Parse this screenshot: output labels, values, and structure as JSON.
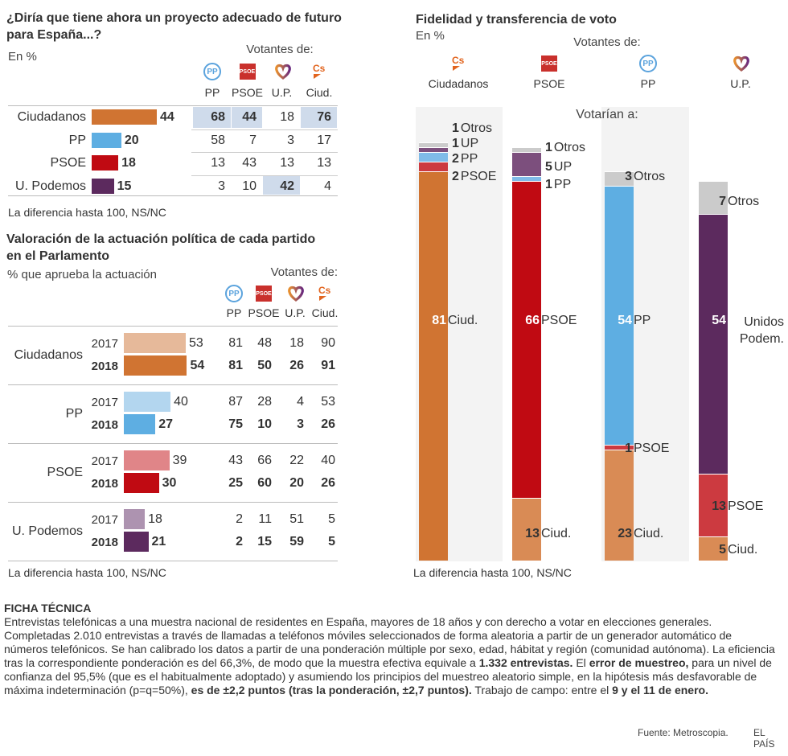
{
  "chart_data": [
    {
      "type": "table",
      "title": "¿Diría que tiene ahora un proyecto adecuado de futuro para España...?",
      "subtitle": "En %",
      "group_label": "Votantes de:",
      "columns": [
        "PP",
        "PSOE",
        "U.P.",
        "Ciud."
      ],
      "rows": [
        {
          "party": "Ciudadanos",
          "total": 44,
          "color": "#d07432",
          "values": [
            68,
            44,
            18,
            76
          ],
          "highlight": [
            true,
            true,
            false,
            true
          ]
        },
        {
          "party": "PP",
          "total": 20,
          "color": "#5eaee2",
          "values": [
            58,
            7,
            3,
            17
          ],
          "highlight": [
            false,
            false,
            false,
            false
          ]
        },
        {
          "party": "PSOE",
          "total": 18,
          "color": "#c00a12",
          "values": [
            13,
            43,
            13,
            13
          ],
          "highlight": [
            false,
            false,
            false,
            false
          ]
        },
        {
          "party": "U. Podemos",
          "total": 15,
          "color": "#5c2a5e",
          "values": [
            3,
            10,
            42,
            4
          ],
          "highlight": [
            false,
            false,
            true,
            false
          ]
        }
      ],
      "note": "La diferencia hasta 100, NS/NC"
    },
    {
      "type": "bar",
      "title": "Valoración de la actuación política de cada partido en el Parlamento",
      "subtitle": "% que aprueba la actuación",
      "group_label": "Votantes de:",
      "columns": [
        "PP",
        "PSOE",
        "U.P.",
        "Ciud."
      ],
      "years": [
        "2017",
        "2018"
      ],
      "rows": [
        {
          "party": "Ciudadanos",
          "color2017": "#e6b99a",
          "color2018": "#d07432",
          "y2017": {
            "total": 53,
            "values": [
              81,
              48,
              18,
              90
            ]
          },
          "y2018": {
            "total": 54,
            "values": [
              81,
              50,
              26,
              91
            ]
          }
        },
        {
          "party": "PP",
          "color2017": "#b3d6ef",
          "color2018": "#5eaee2",
          "y2017": {
            "total": 40,
            "values": [
              87,
              28,
              4,
              53
            ]
          },
          "y2018": {
            "total": 27,
            "values": [
              75,
              10,
              3,
              26
            ]
          }
        },
        {
          "party": "PSOE",
          "color2017": "#e08588",
          "color2018": "#c00a12",
          "y2017": {
            "total": 39,
            "values": [
              43,
              66,
              22,
              40
            ]
          },
          "y2018": {
            "total": 30,
            "values": [
              25,
              60,
              20,
              26
            ]
          }
        },
        {
          "party": "U. Podemos",
          "color2017": "#ad93b0",
          "color2018": "#5c2a5e",
          "y2017": {
            "total": 18,
            "values": [
              2,
              11,
              51,
              5
            ]
          },
          "y2018": {
            "total": 21,
            "values": [
              2,
              15,
              59,
              5
            ]
          }
        }
      ],
      "note": "La diferencia hasta 100, NS/NC"
    },
    {
      "type": "bar",
      "stacked": true,
      "title": "Fidelidad y transferencia de voto",
      "subtitle": "En %",
      "group_label": "Votantes de:",
      "inner_label": "Votarían a:",
      "note": "La diferencia hasta 100, NS/NC",
      "series": [
        {
          "name": "Ciudadanos",
          "segments": [
            {
              "value": 81,
              "label": "Ciud.",
              "color": "#d07432",
              "main": true
            },
            {
              "value": 2,
              "label": "PSOE",
              "color": "#cc3a40"
            },
            {
              "value": 2,
              "label": "PP",
              "color": "#7fbbe8"
            },
            {
              "value": 1,
              "label": "UP",
              "color": "#7c4f7d"
            },
            {
              "value": 1,
              "label": "Otros",
              "color": "#cbcbcb"
            }
          ]
        },
        {
          "name": "PSOE",
          "segments": [
            {
              "value": 13,
              "label": "Ciud.",
              "color": "#d98b55"
            },
            {
              "value": 66,
              "label": "PSOE",
              "color": "#c00a12",
              "main": true
            },
            {
              "value": 1,
              "label": "PP",
              "color": "#7fbbe8"
            },
            {
              "value": 5,
              "label": "UP",
              "color": "#7c4f7d"
            },
            {
              "value": 1,
              "label": "Otros",
              "color": "#cbcbcb"
            }
          ]
        },
        {
          "name": "PP",
          "segments": [
            {
              "value": 23,
              "label": "Ciud.",
              "color": "#d98b55"
            },
            {
              "value": 1,
              "label": "PSOE",
              "color": "#cc3a40"
            },
            {
              "value": 54,
              "label": "PP",
              "color": "#5eaee2",
              "main": true
            },
            {
              "value": 3,
              "label": "Otros",
              "color": "#cbcbcb"
            }
          ]
        },
        {
          "name": "U.P.",
          "segments": [
            {
              "value": 5,
              "label": "Ciud.",
              "color": "#d98b55"
            },
            {
              "value": 13,
              "label": "PSOE",
              "color": "#cc3a40"
            },
            {
              "value": 54,
              "label": "Unidos Podem.",
              "color": "#5c2a5e",
              "main": true
            },
            {
              "value": 7,
              "label": "Otros",
              "color": "#cbcbcb"
            }
          ]
        }
      ]
    }
  ],
  "icons": {
    "pp": "PP",
    "psoe": "PSOE",
    "cs": "Cs"
  },
  "ficha": {
    "title": "FICHA TÉCNICA",
    "p1": "Entrevistas telefónicas a una muestra nacional de residentes en España, mayores de 18 años y con derecho a votar en elecciones generales. Completadas 2.010 entrevistas a través de llamadas a teléfonos móviles seleccionados de forma aleatoria a partir de un generador automático de números telefónicos. Se han calibrado los datos a partir de una ponderación múltiple por sexo, edad, hábitat y región (comunidad autónoma).  La eficiencia tras la correspondiente ponderación es del 66,3%, de modo que la muestra efectiva equivale a ",
    "b1": "1.332 entrevistas.",
    "p2": " El ",
    "b2": "error de muestreo,",
    "p3": " para un nivel de confianza del 95,5% (que es el habitualmente adoptado) y asumiendo los principios del muestreo aleatorio simple, en la hipótesis más desfavorable de máxima indeterminación (p=q=50%), ",
    "b3": "es de ±2,2 puntos (tras la ponderación, ±2,7 puntos).",
    "p4": " Trabajo de campo: entre el ",
    "b4": "9 y el 11 de enero."
  },
  "footer": {
    "source": "Fuente: Metroscopia.",
    "brand": "EL PAÍS"
  }
}
